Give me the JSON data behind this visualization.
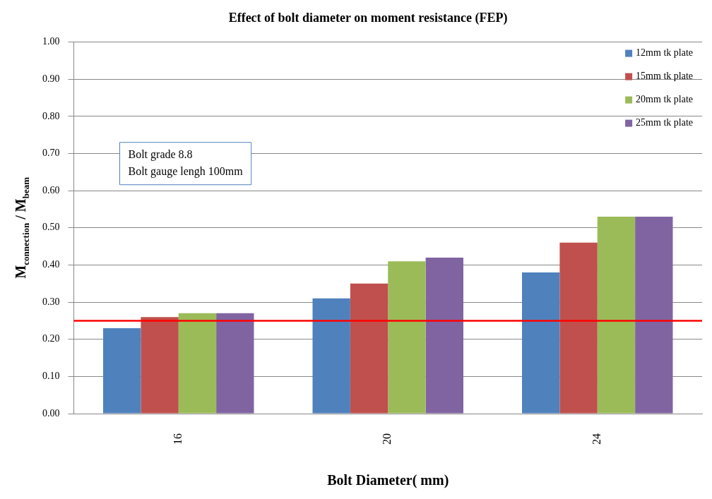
{
  "chart_data": {
    "type": "bar",
    "title": "Effect of bolt diameter on moment resistance (FEP)",
    "xlabel": "Bolt Diameter( mm)",
    "ylabel": "M$_{connection}$ / M$_{beam}$",
    "categories": [
      "16",
      "20",
      "24"
    ],
    "series": [
      {
        "name": "12mm tk plate",
        "color": "#4f81bd",
        "values": [
          0.23,
          0.31,
          0.38
        ]
      },
      {
        "name": "15mm tk plate",
        "color": "#c0504d",
        "values": [
          0.26,
          0.35,
          0.46
        ]
      },
      {
        "name": "20mm tk plate",
        "color": "#9bbb59",
        "values": [
          0.27,
          0.41,
          0.53
        ]
      },
      {
        "name": "25mm tk plate",
        "color": "#8064a2",
        "values": [
          0.27,
          0.42,
          0.53
        ]
      }
    ],
    "ylim": [
      0,
      1
    ],
    "yticks": [
      {
        "value": 0,
        "label": "0.00"
      },
      {
        "value": 0.1,
        "label": "0.10"
      },
      {
        "value": 0.2,
        "label": "0.20"
      },
      {
        "value": 0.3,
        "label": "0.30"
      },
      {
        "value": 0.4,
        "label": "0.40"
      },
      {
        "value": 0.5,
        "label": "0.50"
      },
      {
        "value": 0.6,
        "label": "0.60"
      },
      {
        "value": 0.7,
        "label": "0.70"
      },
      {
        "value": 0.8,
        "label": "0.80"
      },
      {
        "value": 0.9,
        "label": "0.90"
      },
      {
        "value": 1,
        "label": "1.00"
      }
    ],
    "ref_lines": [
      {
        "axis": "y",
        "value": 0.25,
        "color": "#ff0000"
      }
    ],
    "annotations": [
      "Bolt grade 8.8",
      "Bolt gauge lengh 100mm"
    ],
    "grid": "y",
    "legend": "top right"
  }
}
